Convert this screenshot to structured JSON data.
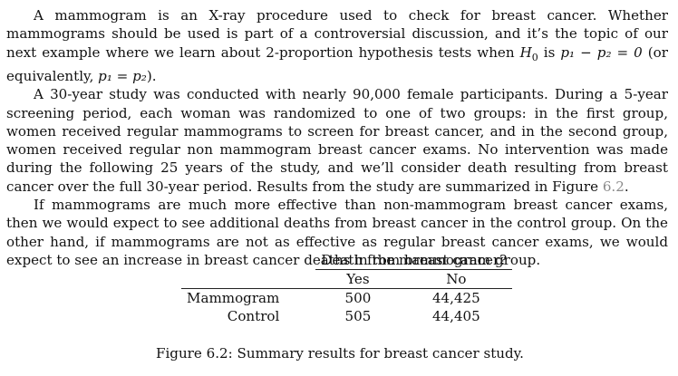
{
  "paragraphs": {
    "p1": {
      "before_h": "A mammogram is an X-ray procedure used to check for breast cancer. Whether mammograms should be used is part of a controversial discussion, and it’s the topic of our next example where we learn about 2-proportion hypothesis tests when ",
      "h_symbol": "H",
      "h_sub": "0",
      "is_text": " is ",
      "eq1": "p₁ − p₂ = 0",
      "middle": " (or equivalently, ",
      "eq2": "p₁ = p₂",
      "after": ")."
    },
    "p2": {
      "before_ref": "A 30-year study was conducted with nearly 90,000 female participants. During a 5-year screening period, each woman was randomized to one of two groups: in the first group, women received regular mammograms to screen for breast cancer, and in the second group, women received regular non mammogram breast cancer exams. No intervention was made during the following 25 years of the study, and we’ll consider death resulting from breast cancer over the full 30-year period. Results from the study are summarized in Figure ",
      "ref": "6.2",
      "after_ref": "."
    },
    "p3": "If mammograms are much more effective than non-mammogram breast cancer exams, then we would expect to see additional deaths from breast cancer in the control group. On the other hand, if mammograms are not as effective as regular breast cancer exams, we would expect to see an increase in breast cancer deaths in the mammogram group."
  },
  "table": {
    "spanning_header": "Death from breast cancer?",
    "columns": [
      "Yes",
      "No"
    ],
    "rows": [
      {
        "label": "Mammogram",
        "yes": "500",
        "no": "44,425"
      },
      {
        "label": "Control",
        "yes": "505",
        "no": "44,405"
      }
    ]
  },
  "caption": "Figure 6.2: Summary results for breast cancer study."
}
